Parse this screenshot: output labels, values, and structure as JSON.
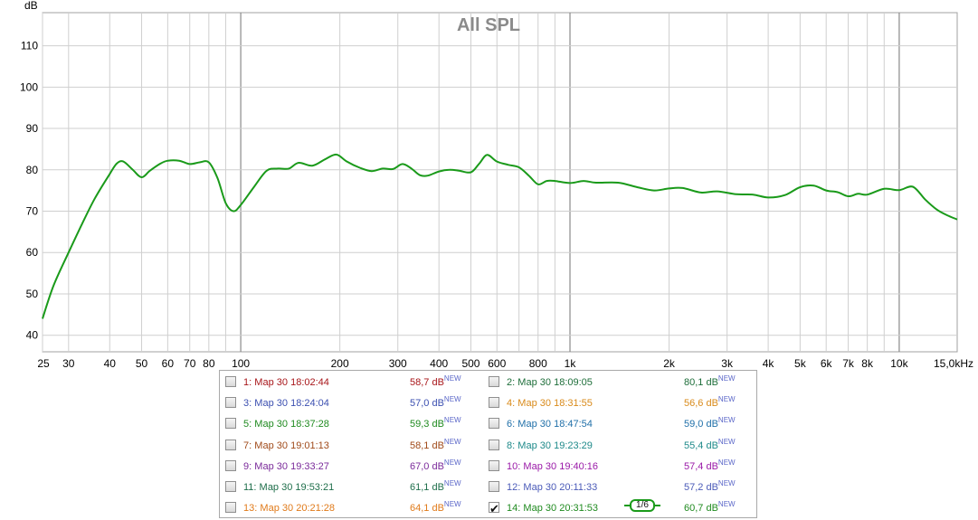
{
  "chart_data": {
    "type": "line",
    "title": "All SPL",
    "ylabel": "dB",
    "xscale": "log",
    "xlim": [
      25,
      15000
    ],
    "ylim": [
      36,
      118
    ],
    "grid": true,
    "y_ticks": [
      40,
      50,
      60,
      70,
      80,
      90,
      100,
      110
    ],
    "x_ticks": [
      25,
      30,
      40,
      50,
      60,
      70,
      80,
      100,
      200,
      300,
      400,
      500,
      600,
      800,
      1000,
      2000,
      3000,
      4000,
      5000,
      6000,
      7000,
      8000,
      10000,
      15000
    ],
    "x_tick_labels": [
      "25",
      "30",
      "40",
      "50",
      "60",
      "70",
      "80",
      "100",
      "200",
      "300",
      "400",
      "500",
      "600",
      "800",
      "1k",
      "2k",
      "3k",
      "4k",
      "5k",
      "6k",
      "7k",
      "8k",
      "10k",
      "15,0kHz"
    ],
    "series": [
      {
        "name": "14: Мар 30 20:31:53",
        "color": "#1a9a1a",
        "x": [
          25,
          27,
          30,
          33,
          36,
          40,
          42,
          44,
          47,
          50,
          53,
          57,
          60,
          65,
          70,
          75,
          80,
          85,
          90,
          95,
          100,
          110,
          120,
          130,
          140,
          150,
          165,
          180,
          195,
          210,
          230,
          250,
          270,
          290,
          310,
          330,
          350,
          370,
          400,
          430,
          460,
          500,
          530,
          560,
          600,
          650,
          700,
          750,
          800,
          850,
          900,
          1000,
          1100,
          1200,
          1400,
          1600,
          1800,
          2000,
          2200,
          2500,
          2800,
          3200,
          3600,
          4000,
          4500,
          5000,
          5500,
          6000,
          6500,
          7000,
          7500,
          8000,
          9000,
          10000,
          11000,
          12000,
          13000,
          14000,
          15000
        ],
        "y": [
          44,
          52,
          60,
          67,
          73,
          79,
          81.5,
          82,
          80,
          78.2,
          79.8,
          81.5,
          82.2,
          82.2,
          81.4,
          81.8,
          81.8,
          78,
          72,
          70,
          71.5,
          76,
          79.8,
          80.3,
          80.3,
          81.7,
          81,
          82.5,
          83.7,
          82,
          80.5,
          79.7,
          80.3,
          80.2,
          81.4,
          80.3,
          78.7,
          78.6,
          79.6,
          80,
          79.8,
          79.4,
          81.5,
          83.6,
          82,
          81.2,
          80.6,
          78.6,
          76.5,
          77.3,
          77.3,
          76.8,
          77.3,
          76.9,
          76.9,
          75.8,
          75,
          75.5,
          75.6,
          74.5,
          74.8,
          74.1,
          74,
          73.3,
          73.9,
          75.8,
          76.2,
          75,
          74.6,
          73.6,
          74.2,
          74,
          75.4,
          75.1,
          75.9,
          72.8,
          70.4,
          69,
          68
        ]
      }
    ]
  },
  "legend": {
    "items": [
      {
        "label": "1: Мар 30 18:02:44",
        "value": "58,7 dB",
        "badge": "NEW",
        "color": "#a8161a",
        "checked": false
      },
      {
        "label": "2: Мар 30 18:09:05",
        "value": "80,1 dB",
        "badge": "NEW",
        "color": "#1e6e3a",
        "checked": false
      },
      {
        "label": "3: Мар 30 18:24:04",
        "value": "57,0 dB",
        "badge": "NEW",
        "color": "#3b4fb0",
        "checked": false
      },
      {
        "label": "4: Мар 30 18:31:55",
        "value": "56,6 dB",
        "badge": "NEW",
        "color": "#d98a1a",
        "checked": false
      },
      {
        "label": "5: Мар 30 18:37:28",
        "value": "59,3 dB",
        "badge": "NEW",
        "color": "#1f8a1f",
        "checked": false
      },
      {
        "label": "6: Мар 30 18:47:54",
        "value": "59,0 dB",
        "badge": "NEW",
        "color": "#1f6fa8",
        "checked": false
      },
      {
        "label": "7: Мар 30 19:01:13",
        "value": "58,1 dB",
        "badge": "NEW",
        "color": "#a04a1a",
        "checked": false
      },
      {
        "label": "8: Мар 30 19:23:29",
        "value": "55,4 dB",
        "badge": "NEW",
        "color": "#1f8a8a",
        "checked": false
      },
      {
        "label": "9: Мар 30 19:33:27",
        "value": "67,0 dB",
        "badge": "NEW",
        "color": "#7a2a9a",
        "checked": false
      },
      {
        "label": "10: Мар 30 19:40:16",
        "value": "57,4 dB",
        "badge": "NEW",
        "color": "#9a1aa8",
        "checked": false
      },
      {
        "label": "11: Мар 30 19:53:21",
        "value": "61,1 dB",
        "badge": "NEW",
        "color": "#1e6e4a",
        "checked": false
      },
      {
        "label": "12: Мар 30 20:11:33",
        "value": "57,2 dB",
        "badge": "NEW",
        "color": "#4a5ab8",
        "checked": false
      },
      {
        "label": "13: Мар 30 20:21:28",
        "value": "64,1 dB",
        "badge": "NEW",
        "color": "#e07a1a",
        "checked": false
      },
      {
        "label": "14: Мар 30 20:31:53",
        "value": "60,7 dB",
        "badge": "NEW",
        "color": "#1f8a1f",
        "checked": true
      }
    ],
    "smoothing": "1/6"
  }
}
